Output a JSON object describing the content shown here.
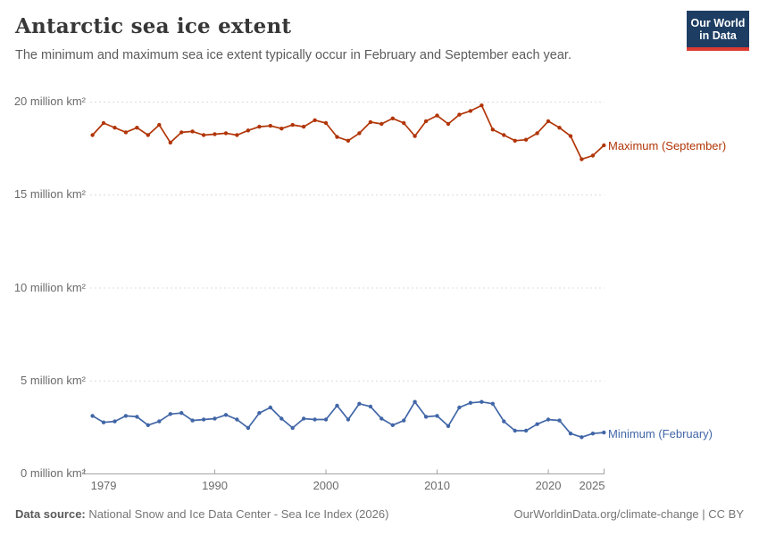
{
  "header": {
    "title": "Antarctic sea ice extent",
    "subtitle": "The minimum and maximum sea ice extent typically occur in February and September each year.",
    "logo": {
      "line1": "Our World",
      "line2": "in Data",
      "bg_color": "#1d3d63",
      "bar_color": "#dc3b32"
    }
  },
  "chart_data": {
    "type": "line",
    "title": "Antarctic sea ice extent",
    "x": [
      1979,
      1980,
      1981,
      1982,
      1983,
      1984,
      1985,
      1986,
      1987,
      1988,
      1989,
      1990,
      1991,
      1992,
      1993,
      1994,
      1995,
      1996,
      1997,
      1998,
      1999,
      2000,
      2001,
      2002,
      2003,
      2004,
      2005,
      2006,
      2007,
      2008,
      2009,
      2010,
      2011,
      2012,
      2013,
      2014,
      2015,
      2016,
      2017,
      2018,
      2019,
      2020,
      2021,
      2022,
      2023,
      2024,
      2025
    ],
    "series": [
      {
        "name": "Maximum (September)",
        "color": "#b13507",
        "values": [
          18.2,
          18.85,
          18.6,
          18.35,
          18.6,
          18.2,
          18.75,
          17.8,
          18.35,
          18.4,
          18.2,
          18.25,
          18.3,
          18.2,
          18.45,
          18.65,
          18.7,
          18.55,
          18.75,
          18.65,
          19.0,
          18.85,
          18.1,
          17.9,
          18.3,
          18.9,
          18.8,
          19.1,
          18.85,
          18.15,
          18.95,
          19.25,
          18.8,
          19.3,
          19.5,
          19.8,
          18.5,
          18.2,
          17.9,
          17.95,
          18.3,
          18.95,
          18.6,
          18.15,
          16.9,
          17.1,
          17.65
        ]
      },
      {
        "name": "Minimum (February)",
        "color": "#4166a7",
        "values": [
          3.1,
          2.75,
          2.8,
          3.1,
          3.05,
          2.6,
          2.8,
          3.2,
          3.25,
          2.85,
          2.9,
          2.95,
          3.15,
          2.9,
          2.45,
          3.25,
          3.55,
          2.95,
          2.45,
          2.95,
          2.9,
          2.9,
          3.65,
          2.9,
          3.75,
          3.6,
          2.95,
          2.6,
          2.85,
          3.85,
          3.05,
          3.1,
          2.55,
          3.55,
          3.8,
          3.85,
          3.75,
          2.8,
          2.3,
          2.3,
          2.65,
          2.9,
          2.85,
          2.15,
          1.95,
          2.15,
          2.2
        ]
      }
    ],
    "unit": "million km²",
    "yticks": [
      {
        "value": 0,
        "label": "0 million km²"
      },
      {
        "value": 5,
        "label": "5 million km²"
      },
      {
        "value": 10,
        "label": "10 million km²"
      },
      {
        "value": 15,
        "label": "15 million km²"
      },
      {
        "value": 20,
        "label": "20 million km²"
      }
    ],
    "xticks": [
      1979,
      1990,
      2000,
      2010,
      2020,
      2025
    ],
    "xlim": [
      1979,
      2025
    ],
    "ylim": [
      0,
      20
    ],
    "grid": true,
    "legend_position": "end-of-line"
  },
  "footer": {
    "source_label": "Data source:",
    "source_text": "National Snow and Ice Data Center - Sea Ice Index (2026)",
    "right_text": "OurWorldinData.org/climate-change | CC BY"
  }
}
